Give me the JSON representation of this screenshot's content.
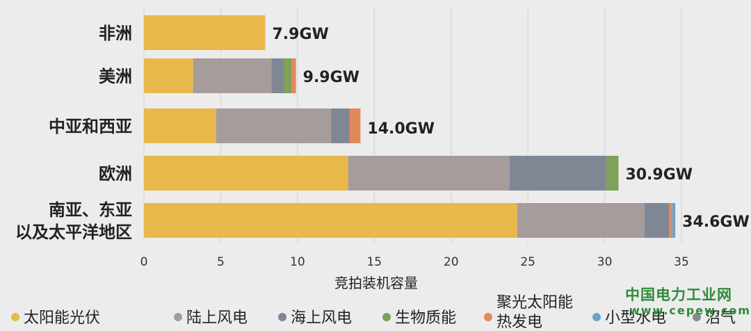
{
  "chart_data": {
    "type": "bar",
    "orientation": "horizontal",
    "stacked": true,
    "categories": [
      "非洲",
      "美洲",
      "中亚和西亚",
      "欧洲",
      "南亚、东亚 以及太平洋地区"
    ],
    "category_lines": [
      [
        "非洲"
      ],
      [
        "美洲"
      ],
      [
        "中亚和西亚"
      ],
      [
        "欧洲"
      ],
      [
        "南亚、东亚",
        "以及太平洋地区"
      ]
    ],
    "totals": [
      "7.9GW",
      "9.9GW",
      "14.0GW",
      "30.9GW",
      "34.6GW"
    ],
    "series": [
      {
        "name": "太阳能光伏",
        "color": "#e8b84b",
        "values": [
          7.9,
          3.2,
          4.7,
          13.3,
          24.3
        ]
      },
      {
        "name": "陆上风电",
        "color": "#a69c9c",
        "values": [
          0,
          5.1,
          7.5,
          10.5,
          8.3
        ]
      },
      {
        "name": "海上风电",
        "color": "#7f8795",
        "values": [
          0,
          0.8,
          1.2,
          6.3,
          1.6
        ]
      },
      {
        "name": "生物质能",
        "color": "#7fa15a",
        "values": [
          0,
          0.5,
          0,
          0.8,
          0
        ]
      },
      {
        "name": "聚光太阳能热发电",
        "color": "#e08a5c",
        "values": [
          0,
          0.3,
          0.7,
          0,
          0.2
        ]
      },
      {
        "name": "小型水电",
        "color": "#6aa4cf",
        "values": [
          0,
          0,
          0,
          0,
          0.2
        ]
      },
      {
        "name": "沼气",
        "color": "#8a8a8a",
        "values": [
          0,
          0,
          0,
          0,
          0
        ]
      }
    ],
    "xlabel": "竞拍装机容量",
    "xlim": [
      0,
      35
    ],
    "xticks": [
      "0",
      "5",
      "10",
      "15",
      "20",
      "25",
      "30",
      "35"
    ],
    "grid": true,
    "legend_position": "bottom",
    "legend_labels": [
      {
        "name": "太阳能光伏",
        "lines": [
          "太阳能光伏"
        ],
        "color": "#e8b84b"
      },
      {
        "name": "陆上风电",
        "lines": [
          "陆上风电"
        ],
        "color": "#a69c9c"
      },
      {
        "name": "海上风电",
        "lines": [
          "海上风电"
        ],
        "color": "#7f8795"
      },
      {
        "name": "生物质能",
        "lines": [
          "生物质能"
        ],
        "color": "#7fa15a"
      },
      {
        "name": "聚光太阳能热发电",
        "lines": [
          "聚光太阳能",
          "热发电"
        ],
        "color": "#e08a5c"
      },
      {
        "name": "小型水电",
        "lines": [
          "小型水电"
        ],
        "color": "#6aa4cf"
      },
      {
        "name": "沼气",
        "lines": [
          "沼气"
        ],
        "color": "#8a8a8a"
      }
    ]
  },
  "watermark": {
    "title": "中国电力工业网",
    "url": "www.cepew.com"
  }
}
